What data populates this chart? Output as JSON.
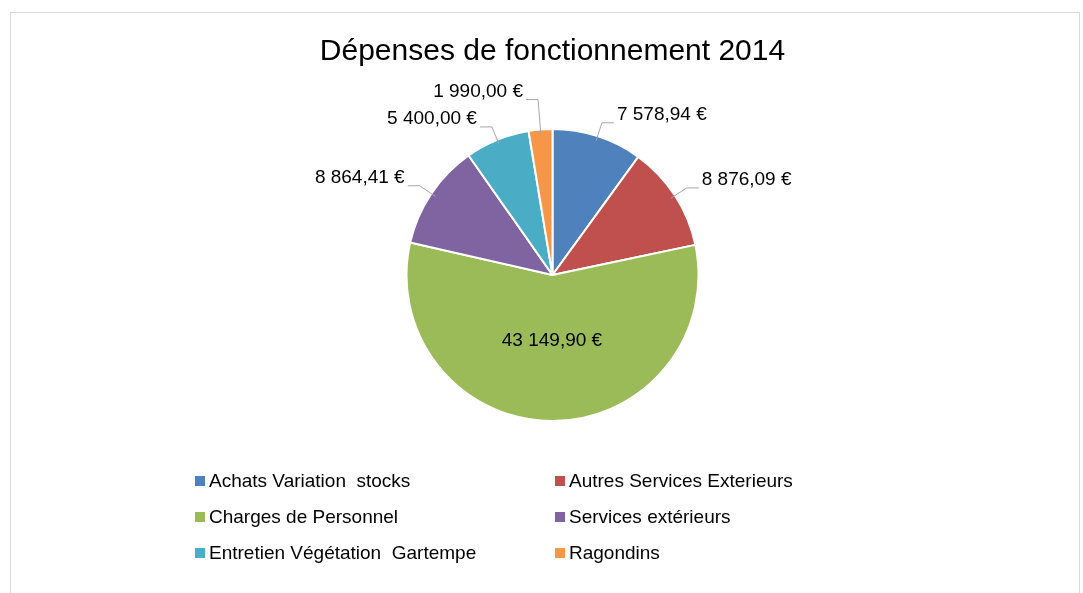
{
  "chart_data": {
    "type": "pie",
    "title": "Dépenses de fonctionnement 2014",
    "categories": [
      "Achats Variation  stocks",
      "Autres Services Exterieurs",
      "Charges de Personnel",
      "Services extérieurs",
      "Entretien Végétation  Gartempe",
      "Ragondins"
    ],
    "values": [
      7578.94,
      8876.09,
      43149.9,
      8864.41,
      5400,
      1990
    ],
    "colors": [
      "#4f81bd",
      "#c0504d",
      "#9bbb59",
      "#8064a2",
      "#4bacc6",
      "#f79646"
    ],
    "value_labels": [
      "7 578,94 €",
      "8 876,09 €",
      "43 149,90 €",
      "8 864,41 €",
      "5 400,00 €",
      "1 990,00 €"
    ],
    "legend": "bottom"
  }
}
